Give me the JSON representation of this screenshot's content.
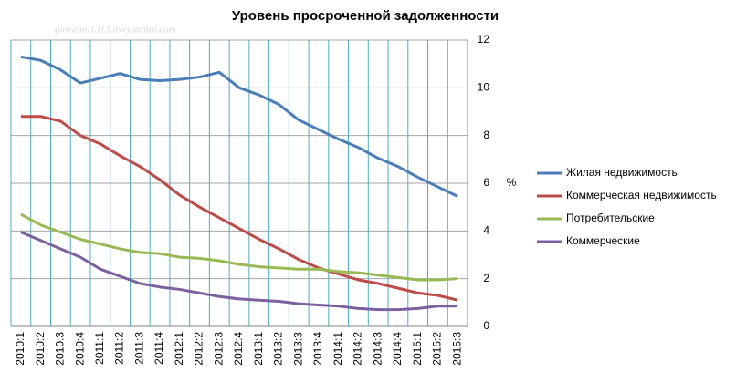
{
  "chart_data": {
    "type": "line",
    "title": "Уровень просроченной задолженности",
    "watermark": "giovanni1313.livejournal.com",
    "y_axis_label": "%",
    "categories": [
      "2010:1",
      "2010:2",
      "2010:3",
      "2010:4",
      "2011:1",
      "2011:2",
      "2011:3",
      "2011:4",
      "2012:1",
      "2012:2",
      "2012:3",
      "2012:4",
      "2013:1",
      "2013:2",
      "2013:3",
      "2013:4",
      "2014:1",
      "2014:2",
      "2014:3",
      "2014:4",
      "2015:1",
      "2015:2",
      "2015:3"
    ],
    "series": [
      {
        "name": "Жилая недвижимость",
        "color": "#4a7ebb",
        "values": [
          11.3,
          11.15,
          10.75,
          10.2,
          10.4,
          10.6,
          10.35,
          10.3,
          10.35,
          10.45,
          10.65,
          10.0,
          9.7,
          9.3,
          8.65,
          8.25,
          7.85,
          7.5,
          7.05,
          6.7,
          6.25,
          5.85,
          5.45
        ]
      },
      {
        "name": "Коммерческая недвижимость",
        "color": "#be4b48",
        "values": [
          8.8,
          8.8,
          8.6,
          8.0,
          7.65,
          7.15,
          6.7,
          6.15,
          5.5,
          5.0,
          4.55,
          4.1,
          3.65,
          3.25,
          2.8,
          2.45,
          2.2,
          1.95,
          1.8,
          1.6,
          1.4,
          1.3,
          1.1
        ]
      },
      {
        "name": "Потребительские",
        "color": "#98b954",
        "values": [
          4.7,
          4.25,
          3.95,
          3.65,
          3.45,
          3.25,
          3.1,
          3.05,
          2.9,
          2.85,
          2.75,
          2.6,
          2.5,
          2.45,
          2.4,
          2.4,
          2.3,
          2.25,
          2.15,
          2.05,
          1.95,
          1.95,
          2.0
        ]
      },
      {
        "name": "Коммерческие",
        "color": "#7d60a0",
        "values": [
          3.95,
          3.6,
          3.25,
          2.9,
          2.4,
          2.1,
          1.8,
          1.65,
          1.55,
          1.4,
          1.25,
          1.15,
          1.1,
          1.05,
          0.95,
          0.9,
          0.85,
          0.75,
          0.7,
          0.7,
          0.75,
          0.85,
          0.85
        ]
      }
    ],
    "ylim": [
      0,
      12
    ],
    "yticks": [
      0,
      2,
      4,
      6,
      8,
      10,
      12
    ],
    "y_axis_side": "right",
    "grid": true,
    "legend": "right"
  }
}
